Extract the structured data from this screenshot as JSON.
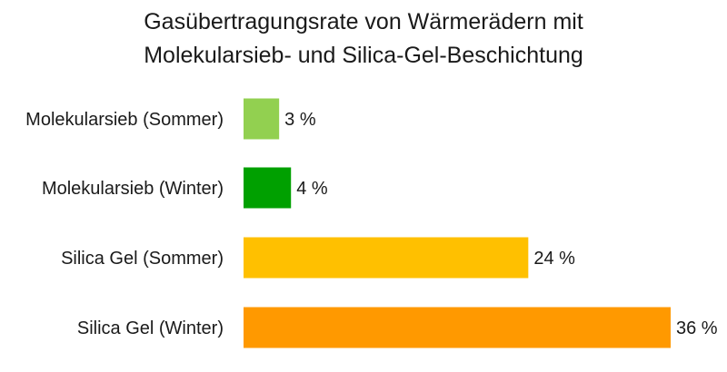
{
  "chart_data": {
    "type": "bar",
    "orientation": "horizontal",
    "title_lines": [
      "Gasübertragungsrate von Wärmerädern mit",
      "Molekularsieb- und Silica-Gel-Beschichtung"
    ],
    "categories": [
      "Molekularsieb (Sommer)",
      "Molekularsieb (Winter)",
      "Silica Gel (Sommer)",
      "Silica Gel (Winter)"
    ],
    "values": [
      3,
      4,
      24,
      36
    ],
    "value_labels": [
      "3 %",
      "4 %",
      "24 %",
      "36 %"
    ],
    "unit": "%",
    "colors": [
      "#92d050",
      "#00a000",
      "#ffc000",
      "#ff9900"
    ],
    "xlabel": "",
    "ylabel": "",
    "xlim": [
      0,
      36
    ],
    "grid": false,
    "legend": "none"
  }
}
